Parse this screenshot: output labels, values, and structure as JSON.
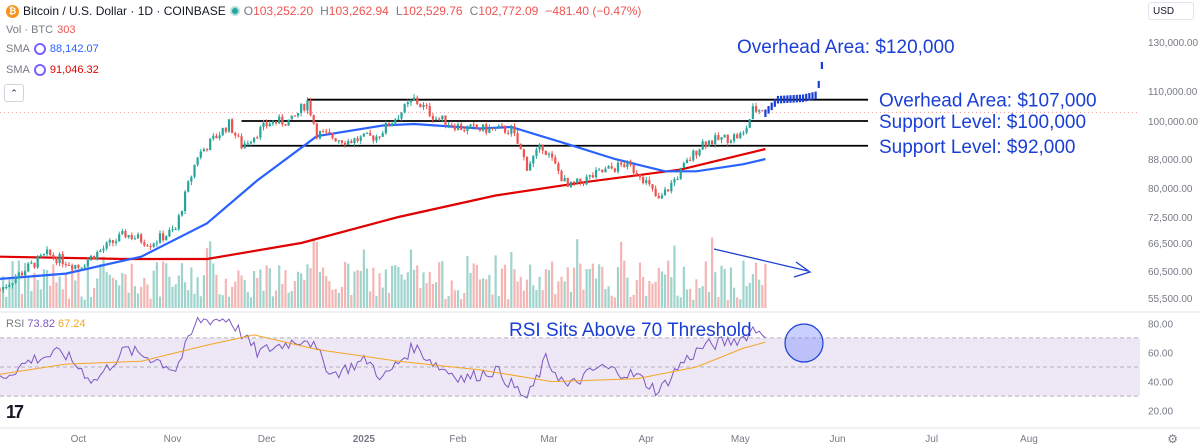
{
  "header": {
    "title": "Bitcoin / U.S. Dollar · 1D · COINBASE",
    "badge_text": "₿",
    "ohlc": [
      {
        "key": "O",
        "value": "103,252.20"
      },
      {
        "key": "H",
        "value": "103,262.94"
      },
      {
        "key": "L",
        "value": "102,529.76"
      },
      {
        "key": "C",
        "value": "102,772.09"
      }
    ],
    "change": "−481.40 (−0.47%)",
    "volume_label": "Vol · BTC",
    "volume_value": "303",
    "sma1_label": "SMA",
    "sma1_value": "88,142.07",
    "sma2_label": "SMA",
    "sma2_value": "91,046.32",
    "collapse_glyph": "⌃",
    "currency": "USD",
    "rsi_label": "RSI",
    "rsi_value": "73.82",
    "rsi_ma_value": "67.24",
    "logo_text": "17",
    "settings_glyph": "⚙"
  },
  "colors": {
    "up": "#26a69a",
    "down": "#ef5350",
    "sma_fast": "#2962ff",
    "sma_slow": "#e00000",
    "annotation": "#1a3fd6",
    "rsi_line": "#7e57c2",
    "rsi_ma": "#f5a623",
    "rsi_band": "#ede7f6"
  },
  "chart_data": [
    {
      "type": "candlestick",
      "x_tick_labels": [
        "Oct",
        "Nov",
        "Dec",
        "2025",
        "Feb",
        "Mar",
        "Apr",
        "May",
        "Jun",
        "Jul",
        "Aug"
      ],
      "y_tick_labels": [
        "130,000.00",
        "110,000.00",
        "100,000.00",
        "88,000.00",
        "80,000.00",
        "72,500.00",
        "66,500.00",
        "60,500.00",
        "55,500.00"
      ],
      "scale": "log",
      "ylim": [
        53000,
        140000
      ],
      "price_path": [
        [
          "2024-09-10",
          57000
        ],
        [
          "2024-09-25",
          64000
        ],
        [
          "2024-10-05",
          61500
        ],
        [
          "2024-10-20",
          68500
        ],
        [
          "2024-10-28",
          66500
        ],
        [
          "2024-11-05",
          69500
        ],
        [
          "2024-11-12",
          89000
        ],
        [
          "2024-11-22",
          99000
        ],
        [
          "2024-11-26",
          92000
        ],
        [
          "2024-12-05",
          99500
        ],
        [
          "2024-12-12",
          100000
        ],
        [
          "2024-12-17",
          106500
        ],
        [
          "2024-12-20",
          96000
        ],
        [
          "2024-12-30",
          93500
        ],
        [
          "2025-01-08",
          95000
        ],
        [
          "2025-01-20",
          107000
        ],
        [
          "2025-01-27",
          101000
        ],
        [
          "2025-02-05",
          97500
        ],
        [
          "2025-02-20",
          97000
        ],
        [
          "2025-02-25",
          86000
        ],
        [
          "2025-03-02",
          92000
        ],
        [
          "2025-03-10",
          80000
        ],
        [
          "2025-03-20",
          84000
        ],
        [
          "2025-03-28",
          86500
        ],
        [
          "2025-04-02",
          84000
        ],
        [
          "2025-04-08",
          76500
        ],
        [
          "2025-04-15",
          84500
        ],
        [
          "2025-04-22",
          93000
        ],
        [
          "2025-04-30",
          94500
        ],
        [
          "2025-05-05",
          95500
        ],
        [
          "2025-05-08",
          103500
        ],
        [
          "2025-05-12",
          104000
        ]
      ],
      "projection_path": [
        [
          "2025-05-12",
          102500
        ],
        [
          "2025-05-16",
          107000
        ],
        [
          "2025-05-24",
          107500
        ],
        [
          "2025-05-28",
          108500
        ],
        [
          "2025-05-29",
          112500
        ],
        [
          "2025-05-30",
          120000
        ]
      ],
      "sma_fast_path": [
        [
          "2024-09-10",
          59000
        ],
        [
          "2024-10-01",
          60000
        ],
        [
          "2024-10-25",
          63500
        ],
        [
          "2024-11-15",
          71000
        ],
        [
          "2024-12-01",
          82000
        ],
        [
          "2024-12-20",
          95000
        ],
        [
          "2025-01-10",
          98500
        ],
        [
          "2025-01-20",
          99000
        ],
        [
          "2025-02-10",
          97500
        ],
        [
          "2025-02-20",
          98000
        ],
        [
          "2025-03-10",
          92500
        ],
        [
          "2025-03-25",
          88000
        ],
        [
          "2025-04-10",
          84500
        ],
        [
          "2025-04-20",
          84500
        ],
        [
          "2025-05-05",
          86500
        ],
        [
          "2025-05-12",
          88000
        ]
      ],
      "sma_slow_path": [
        [
          "2024-09-10",
          63500
        ],
        [
          "2024-10-20",
          63000
        ],
        [
          "2024-11-15",
          63000
        ],
        [
          "2024-12-15",
          66500
        ],
        [
          "2025-01-15",
          72500
        ],
        [
          "2025-02-15",
          78000
        ],
        [
          "2025-03-15",
          81500
        ],
        [
          "2025-04-15",
          85000
        ],
        [
          "2025-05-12",
          91000
        ]
      ],
      "horizontal_levels": [
        {
          "value": 107000,
          "from": "2024-12-17",
          "to": "2025-05-28",
          "label": "Overhead Area: $107,000"
        },
        {
          "value": 100000,
          "from": "2024-11-26",
          "to": "2025-05-28",
          "label": "Support Level: $100,000"
        },
        {
          "value": 92000,
          "from": "2024-11-26",
          "to": "2025-05-28",
          "label": "Support Level: $92,000"
        }
      ],
      "annotations": [
        {
          "text": "Overhead Area: $120,000",
          "value": 120000
        }
      ],
      "volume_trend_arrow": "down"
    },
    {
      "type": "line",
      "name": "RSI",
      "y_tick_labels": [
        "80.00",
        "60.00",
        "40.00",
        "20.00"
      ],
      "ylim": [
        15,
        85
      ],
      "bands": {
        "upper": 70,
        "middle": 50,
        "lower": 30
      },
      "rsi_path": [
        [
          "2024-09-10",
          42
        ],
        [
          "2024-09-20",
          55
        ],
        [
          "2024-09-30",
          60
        ],
        [
          "2024-10-10",
          40
        ],
        [
          "2024-10-20",
          62
        ],
        [
          "2024-10-30",
          55
        ],
        [
          "2024-11-05",
          48
        ],
        [
          "2024-11-12",
          82
        ],
        [
          "2024-11-22",
          83
        ],
        [
          "2024-12-01",
          60
        ],
        [
          "2024-12-10",
          66
        ],
        [
          "2024-12-17",
          70
        ],
        [
          "2024-12-25",
          45
        ],
        [
          "2025-01-05",
          55
        ],
        [
          "2025-01-10",
          42
        ],
        [
          "2025-01-20",
          64
        ],
        [
          "2025-01-28",
          50
        ],
        [
          "2025-02-05",
          42
        ],
        [
          "2025-02-15",
          48
        ],
        [
          "2025-02-25",
          28
        ],
        [
          "2025-03-03",
          55
        ],
        [
          "2025-03-10",
          36
        ],
        [
          "2025-03-20",
          50
        ],
        [
          "2025-04-01",
          44
        ],
        [
          "2025-04-08",
          33
        ],
        [
          "2025-04-15",
          52
        ],
        [
          "2025-04-22",
          64
        ],
        [
          "2025-05-01",
          68
        ],
        [
          "2025-05-05",
          70
        ],
        [
          "2025-05-08",
          76
        ],
        [
          "2025-05-12",
          74
        ]
      ],
      "rsi_ma_path": [
        [
          "2024-09-10",
          45
        ],
        [
          "2024-10-01",
          52
        ],
        [
          "2024-10-25",
          54
        ],
        [
          "2024-11-15",
          65
        ],
        [
          "2024-11-30",
          72
        ],
        [
          "2024-12-20",
          62
        ],
        [
          "2025-01-15",
          54
        ],
        [
          "2025-02-10",
          48
        ],
        [
          "2025-03-05",
          40
        ],
        [
          "2025-04-01",
          42
        ],
        [
          "2025-04-20",
          50
        ],
        [
          "2025-05-05",
          63
        ],
        [
          "2025-05-12",
          67
        ]
      ],
      "annotation": "RSI Sits Above 70 Threshold"
    }
  ]
}
